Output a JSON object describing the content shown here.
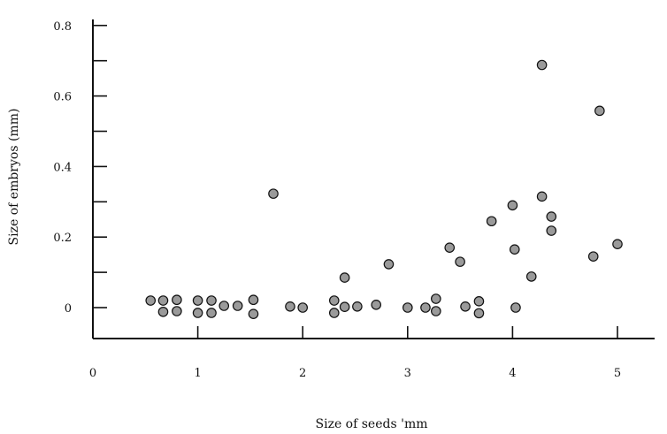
{
  "chart_data": {
    "type": "scatter",
    "title": "",
    "xlabel": "Size of seeds 'mm",
    "ylabel": "Size of embryos (mm)",
    "xlim": [
      0,
      5.3
    ],
    "ylim": [
      -0.09,
      0.84
    ],
    "x_ticks": [
      0,
      1,
      2,
      3,
      4,
      5
    ],
    "x_tick_labels": [
      "0",
      "1",
      "2",
      "3",
      "4",
      "5"
    ],
    "y_ticks": [
      0,
      0.2,
      0.4,
      0.6,
      0.8
    ],
    "y_tick_labels": [
      "0",
      "0.2",
      "0.4",
      "0.6",
      "0.8"
    ],
    "y_minor_ticks": [
      0.1,
      0.3,
      0.5,
      0.7
    ],
    "grid": false,
    "legend": "none",
    "colors": {
      "marker_fill": "#9a9a9a",
      "marker_edge": "#111111",
      "axis": "#111111"
    },
    "series": [
      {
        "points": [
          {
            "x": 0.55,
            "y": 0.02
          },
          {
            "x": 0.67,
            "y": 0.02
          },
          {
            "x": 0.67,
            "y": -0.012
          },
          {
            "x": 0.8,
            "y": 0.022
          },
          {
            "x": 0.8,
            "y": -0.01
          },
          {
            "x": 1.0,
            "y": 0.02
          },
          {
            "x": 1.0,
            "y": -0.015
          },
          {
            "x": 1.13,
            "y": 0.02
          },
          {
            "x": 1.13,
            "y": -0.015
          },
          {
            "x": 1.25,
            "y": 0.005
          },
          {
            "x": 1.38,
            "y": 0.005
          },
          {
            "x": 1.53,
            "y": 0.022
          },
          {
            "x": 1.53,
            "y": -0.018
          },
          {
            "x": 1.72,
            "y": 0.323
          },
          {
            "x": 1.88,
            "y": 0.003
          },
          {
            "x": 2.0,
            "y": 0.0
          },
          {
            "x": 2.3,
            "y": 0.02
          },
          {
            "x": 2.3,
            "y": -0.015
          },
          {
            "x": 2.4,
            "y": 0.085
          },
          {
            "x": 2.4,
            "y": 0.002
          },
          {
            "x": 2.52,
            "y": 0.003
          },
          {
            "x": 2.7,
            "y": 0.008
          },
          {
            "x": 2.82,
            "y": 0.123
          },
          {
            "x": 3.0,
            "y": 0.0
          },
          {
            "x": 3.17,
            "y": 0.0
          },
          {
            "x": 3.27,
            "y": 0.025
          },
          {
            "x": 3.27,
            "y": -0.01
          },
          {
            "x": 3.4,
            "y": 0.17
          },
          {
            "x": 3.5,
            "y": 0.13
          },
          {
            "x": 3.55,
            "y": 0.003
          },
          {
            "x": 3.68,
            "y": 0.018
          },
          {
            "x": 3.68,
            "y": -0.016
          },
          {
            "x": 3.8,
            "y": 0.245
          },
          {
            "x": 4.0,
            "y": 0.29
          },
          {
            "x": 4.02,
            "y": 0.165
          },
          {
            "x": 4.03,
            "y": 0.0
          },
          {
            "x": 4.18,
            "y": 0.088
          },
          {
            "x": 4.28,
            "y": 0.688
          },
          {
            "x": 4.28,
            "y": 0.315
          },
          {
            "x": 4.37,
            "y": 0.258
          },
          {
            "x": 4.37,
            "y": 0.218
          },
          {
            "x": 4.77,
            "y": 0.145
          },
          {
            "x": 4.83,
            "y": 0.558
          },
          {
            "x": 5.0,
            "y": 0.18
          }
        ]
      }
    ]
  }
}
